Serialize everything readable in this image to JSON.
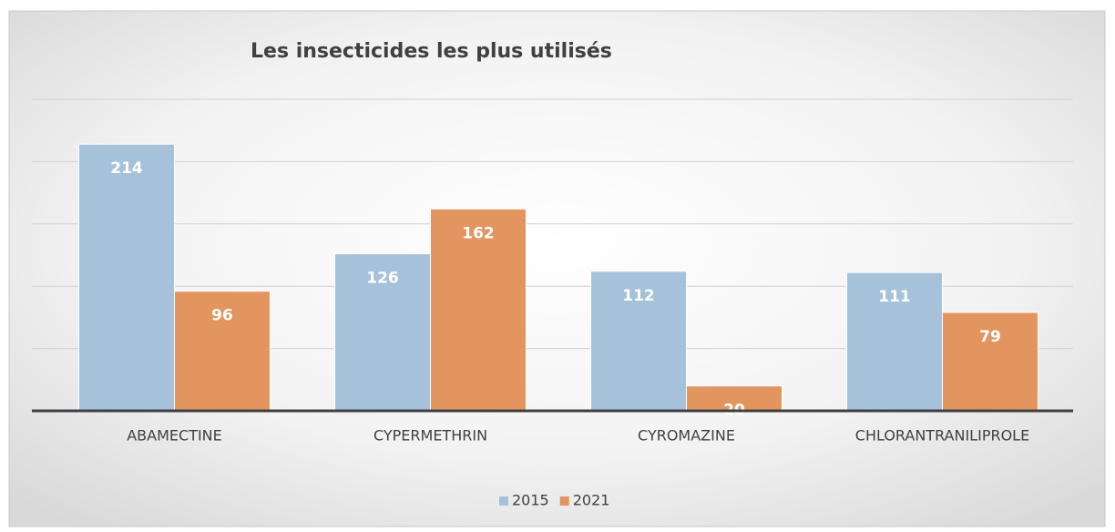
{
  "chart_data": {
    "type": "bar",
    "title": "Les insecticides les plus utilisés",
    "categories": [
      "ABAMECTINE",
      "CYPERMETHRIN",
      "CYROMAZINE",
      "CHLORANTRANILIPROLE"
    ],
    "series": [
      {
        "name": "2015",
        "color": "#a6c2da",
        "values": [
          214,
          126,
          112,
          111
        ]
      },
      {
        "name": "2021",
        "color": "#e3955f",
        "values": [
          96,
          162,
          20,
          79
        ]
      }
    ],
    "ylim": [
      0,
      250
    ],
    "yticks": [
      0,
      50,
      100,
      150,
      200,
      250
    ],
    "grid": true
  }
}
